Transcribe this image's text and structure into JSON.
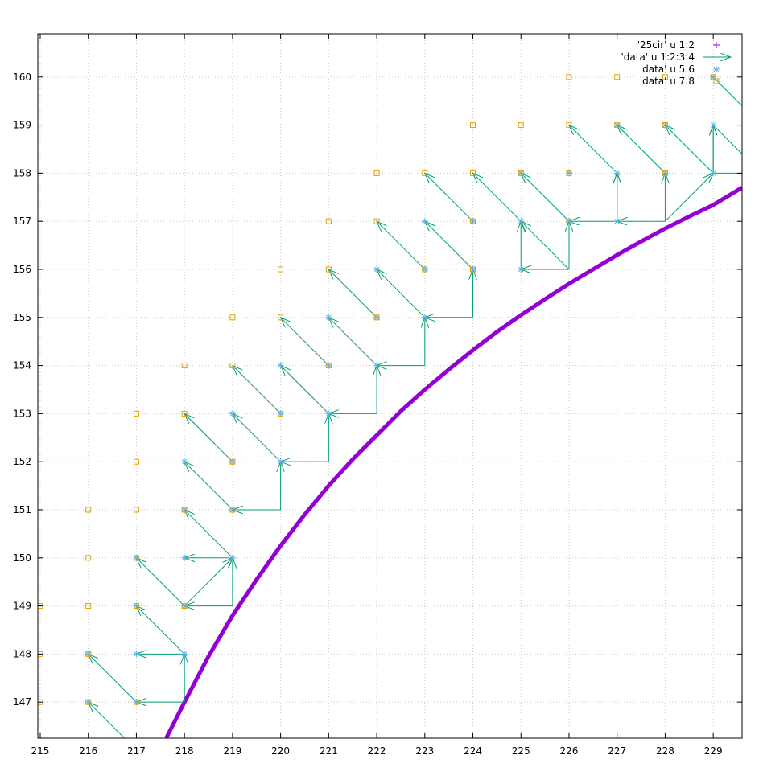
{
  "chart_data": {
    "type": "scatter",
    "title": "",
    "xlabel": "",
    "ylabel": "",
    "xlim": [
      214.95,
      229.6
    ],
    "ylim": [
      146.25,
      160.9
    ],
    "grid": true,
    "legend_position": "top-right",
    "xticks": [
      215,
      216,
      217,
      218,
      219,
      220,
      221,
      222,
      223,
      224,
      225,
      226,
      227,
      228,
      229
    ],
    "yticks": [
      147,
      148,
      149,
      150,
      151,
      152,
      153,
      154,
      155,
      156,
      157,
      158,
      159,
      160
    ],
    "series": [
      {
        "name": "'25cir' u 1:2",
        "kind": "curve",
        "color": "#9400d3",
        "points": [
          [
            217.62,
            146.25
          ],
          [
            218.0,
            147.0
          ],
          [
            218.5,
            147.95
          ],
          [
            219.0,
            148.8
          ],
          [
            219.5,
            149.55
          ],
          [
            220.0,
            150.25
          ],
          [
            220.5,
            150.9
          ],
          [
            221.0,
            151.5
          ],
          [
            221.5,
            152.05
          ],
          [
            222.0,
            152.55
          ],
          [
            222.5,
            153.05
          ],
          [
            223.0,
            153.5
          ],
          [
            223.5,
            153.92
          ],
          [
            224.0,
            154.32
          ],
          [
            224.5,
            154.7
          ],
          [
            225.0,
            155.05
          ],
          [
            225.5,
            155.38
          ],
          [
            226.0,
            155.7
          ],
          [
            226.5,
            156.0
          ],
          [
            227.0,
            156.3
          ],
          [
            227.5,
            156.58
          ],
          [
            228.0,
            156.85
          ],
          [
            228.5,
            157.1
          ],
          [
            229.0,
            157.34
          ],
          [
            229.6,
            157.7
          ]
        ]
      },
      {
        "name": "'data' u 1:2:3:4",
        "kind": "vectors",
        "color": "#009e73",
        "vectors": [
          [
            218,
            147,
            0,
            1
          ],
          [
            218,
            147,
            -1,
            0
          ],
          [
            218,
            148,
            -1,
            0
          ],
          [
            219,
            149,
            -1,
            0
          ],
          [
            219,
            149,
            0,
            1
          ],
          [
            219,
            150,
            -1,
            0
          ],
          [
            220,
            151,
            -1,
            0
          ],
          [
            220,
            151,
            0,
            1
          ],
          [
            221,
            152,
            -1,
            0
          ],
          [
            221,
            152,
            0,
            1
          ],
          [
            222,
            153,
            -1,
            0
          ],
          [
            222,
            153,
            0,
            1
          ],
          [
            223,
            154,
            -1,
            0
          ],
          [
            223,
            154,
            0,
            1
          ],
          [
            224,
            155,
            -1,
            0
          ],
          [
            224,
            155,
            0,
            1
          ],
          [
            226,
            156,
            -1,
            0
          ],
          [
            226,
            156,
            0,
            1
          ],
          [
            226,
            156,
            -1,
            1
          ],
          [
            227,
            157,
            -1,
            0
          ],
          [
            227,
            157,
            0,
            1
          ],
          [
            228,
            157,
            -1,
            0
          ],
          [
            228,
            157,
            0,
            1
          ],
          [
            228,
            157,
            1,
            1
          ],
          [
            229,
            158,
            0,
            1
          ],
          [
            229,
            158,
            1,
            0
          ],
          [
            217,
            147,
            -1,
            1
          ],
          [
            217,
            146,
            -1,
            1
          ],
          [
            218,
            148,
            -1,
            1
          ],
          [
            218,
            149,
            -1,
            1
          ],
          [
            219,
            150,
            -1,
            1
          ],
          [
            219,
            151,
            -1,
            1
          ],
          [
            219,
            152,
            -1,
            1
          ],
          [
            220,
            152,
            -1,
            1
          ],
          [
            220,
            153,
            -1,
            1
          ],
          [
            221,
            153,
            -1,
            1
          ],
          [
            221,
            154,
            -1,
            1
          ],
          [
            222,
            154,
            -1,
            1
          ],
          [
            222,
            155,
            -1,
            1
          ],
          [
            223,
            155,
            -1,
            1
          ],
          [
            223,
            156,
            -1,
            1
          ],
          [
            224,
            156,
            -1,
            1
          ],
          [
            224,
            157,
            -1,
            1
          ],
          [
            225,
            157,
            -1,
            1
          ],
          [
            226,
            157,
            -1,
            1
          ],
          [
            227,
            158,
            -1,
            1
          ],
          [
            228,
            158,
            -1,
            1
          ],
          [
            229,
            158,
            -1,
            1
          ],
          [
            229,
            159,
            1,
            -1
          ],
          [
            229,
            160,
            1,
            -1
          ],
          [
            225,
            156,
            0,
            1
          ],
          [
            227,
            157,
            0,
            1
          ],
          [
            229,
            158,
            0,
            1
          ],
          [
            218,
            149,
            1,
            1
          ]
        ]
      },
      {
        "name": "'data' u 5:6",
        "kind": "stars",
        "color": "#56b4e9",
        "points": [
          [
            216,
            148
          ],
          [
            216,
            147
          ],
          [
            217,
            148
          ],
          [
            217,
            147
          ],
          [
            217,
            150
          ],
          [
            217,
            149
          ],
          [
            218,
            148
          ],
          [
            218,
            150
          ],
          [
            218,
            152
          ],
          [
            218,
            151
          ],
          [
            218,
            149
          ],
          [
            219,
            150
          ],
          [
            219,
            151
          ],
          [
            219,
            152
          ],
          [
            219,
            153
          ],
          [
            220,
            152
          ],
          [
            220,
            153
          ],
          [
            220,
            154
          ],
          [
            221,
            153
          ],
          [
            221,
            154
          ],
          [
            221,
            155
          ],
          [
            222,
            154
          ],
          [
            222,
            155
          ],
          [
            222,
            156
          ],
          [
            223,
            155
          ],
          [
            223,
            156
          ],
          [
            223,
            157
          ],
          [
            224,
            156
          ],
          [
            224,
            157
          ],
          [
            225,
            156
          ],
          [
            225,
            157
          ],
          [
            225,
            158
          ],
          [
            226,
            157
          ],
          [
            226,
            158
          ],
          [
            227,
            157
          ],
          [
            227,
            158
          ],
          [
            227,
            159
          ],
          [
            228,
            158
          ],
          [
            228,
            159
          ],
          [
            229,
            158
          ],
          [
            229,
            159
          ],
          [
            229,
            160
          ]
        ]
      },
      {
        "name": "'data' u 7:8",
        "kind": "squares",
        "color": "#e69f00",
        "points": [
          [
            215,
            147
          ],
          [
            215,
            148
          ],
          [
            215,
            149
          ],
          [
            216,
            147
          ],
          [
            216,
            148
          ],
          [
            216,
            149
          ],
          [
            216,
            150
          ],
          [
            216,
            151
          ],
          [
            217,
            147
          ],
          [
            217,
            149
          ],
          [
            217,
            150
          ],
          [
            217,
            151
          ],
          [
            217,
            152
          ],
          [
            217,
            153
          ],
          [
            218,
            149
          ],
          [
            218,
            151
          ],
          [
            218,
            153
          ],
          [
            218,
            154
          ],
          [
            219,
            151
          ],
          [
            219,
            152
          ],
          [
            219,
            154
          ],
          [
            219,
            155
          ],
          [
            220,
            153
          ],
          [
            220,
            155
          ],
          [
            220,
            156
          ],
          [
            221,
            154
          ],
          [
            221,
            156
          ],
          [
            221,
            157
          ],
          [
            222,
            155
          ],
          [
            222,
            157
          ],
          [
            222,
            158
          ],
          [
            223,
            156
          ],
          [
            223,
            158
          ],
          [
            224,
            156
          ],
          [
            224,
            157
          ],
          [
            224,
            158
          ],
          [
            224,
            159
          ],
          [
            225,
            158
          ],
          [
            225,
            159
          ],
          [
            226,
            157
          ],
          [
            226,
            158
          ],
          [
            226,
            159
          ],
          [
            226,
            160
          ],
          [
            227,
            159
          ],
          [
            227,
            160
          ],
          [
            228,
            158
          ],
          [
            228,
            159
          ],
          [
            228,
            160
          ],
          [
            229,
            160
          ]
        ]
      }
    ]
  }
}
